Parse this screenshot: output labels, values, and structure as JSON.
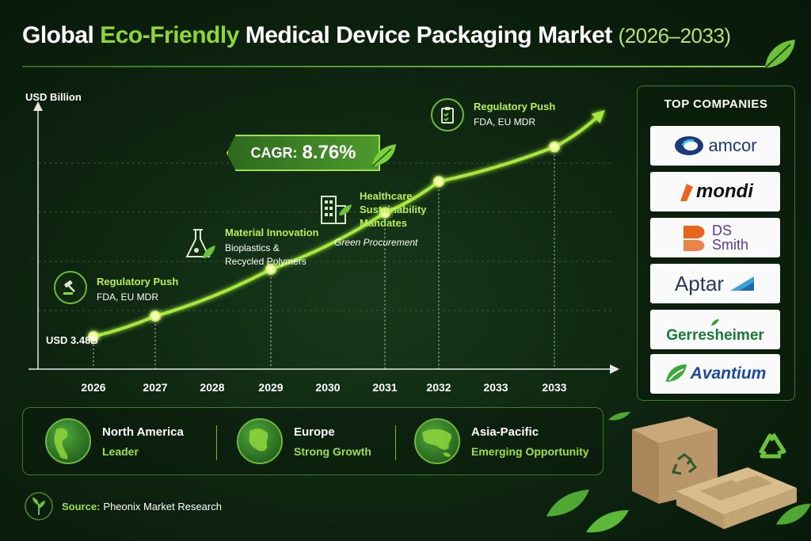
{
  "title": {
    "part1": "Global ",
    "part2": "Eco-Friendly",
    "part3": " Medical Device Packaging Market ",
    "years": "(2026–2033)"
  },
  "colors": {
    "accent": "#8fd63c",
    "line": "#a6e83a",
    "background": "#0d230f"
  },
  "chart_data": {
    "type": "line",
    "ylabel": "USD Billion",
    "x_tick_labels": [
      "2026",
      "2027",
      "2028",
      "2029",
      "2030",
      "2031",
      "2032",
      "2033",
      "2033"
    ],
    "start_label": "USD 3.48B",
    "points": [
      {
        "x": "2026",
        "y": 3.48
      },
      {
        "x": "2027",
        "y": 3.78
      },
      {
        "x": "2029",
        "y": 4.47
      },
      {
        "x": "2031",
        "y": 5.3
      },
      {
        "x": "2032",
        "y": 5.76
      },
      {
        "x": "2033",
        "y": 6.27
      }
    ],
    "grid": true
  },
  "cagr": {
    "label": "CAGR:",
    "value": "8.76%"
  },
  "annotations": [
    {
      "icon": "gavel-icon",
      "title": "Regulatory Push",
      "lines": [
        "FDA, EU MDR"
      ]
    },
    {
      "icon": "flask-icon",
      "title": "Material Innovation",
      "lines": [
        "Bioplastics &",
        "Recycled Polymers"
      ]
    },
    {
      "icon": "building-icon",
      "title_lines": [
        "Healthcare",
        "Sustainability",
        "Mandates"
      ],
      "sub": "Green Procurement"
    },
    {
      "icon": "clipboard-icon",
      "title": "Regulatory Push",
      "lines": [
        "FDA, EU MDR"
      ]
    }
  ],
  "companies": {
    "title": "TOP COMPANIES",
    "items": [
      "amcor",
      "mondi",
      "DS",
      "Smith",
      "Aptar",
      "Gerresheimer",
      "Avantium"
    ]
  },
  "regions": [
    {
      "name": "North America",
      "status": "Leader"
    },
    {
      "name": "Europe",
      "status": "Strong Growth"
    },
    {
      "name": "Asia-Pacific",
      "status": "Emerging Opportunity"
    }
  ],
  "source": {
    "label": "Source:",
    "text": "Pheonix Market Research"
  }
}
